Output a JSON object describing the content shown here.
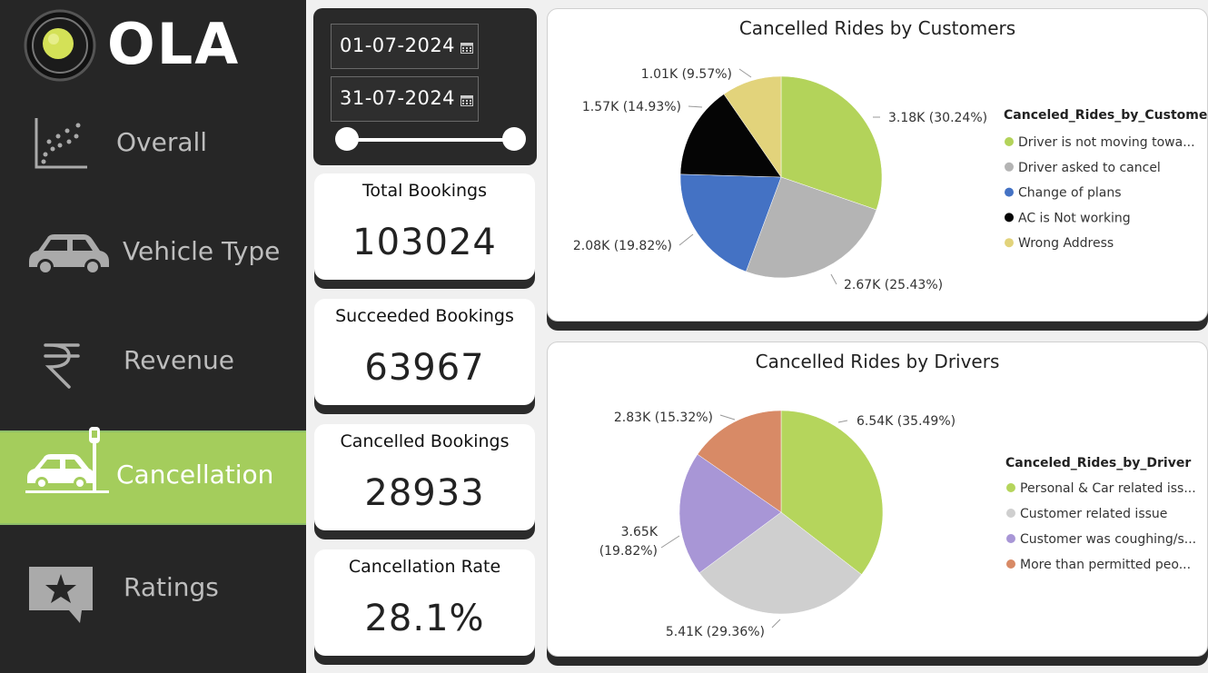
{
  "brand": {
    "name": "OLA"
  },
  "nav": {
    "items": [
      {
        "label": "Overall",
        "icon": "scatter-plot-icon",
        "active": false
      },
      {
        "label": "Vehicle Type",
        "icon": "car-icon",
        "active": false
      },
      {
        "label": "Revenue",
        "icon": "rupee-icon",
        "active": false
      },
      {
        "label": "Cancellation",
        "icon": "car-crash-icon",
        "active": true
      },
      {
        "label": "Ratings",
        "icon": "star-message-icon",
        "active": false
      }
    ]
  },
  "filters": {
    "start_date": "01-07-2024",
    "end_date": "31-07-2024",
    "range": [
      0,
      1
    ]
  },
  "kpis": [
    {
      "title": "Total Bookings",
      "value": "103024"
    },
    {
      "title": "Succeeded Bookings",
      "value": "63967"
    },
    {
      "title": "Cancelled Bookings",
      "value": "28933"
    },
    {
      "title": "Cancellation Rate",
      "value": "28.1%"
    }
  ],
  "chart_data": [
    {
      "type": "pie",
      "title": "Cancelled Rides by Customers",
      "legend_title": "Canceled_Rides_by_Customer",
      "legend_position": "right",
      "slices": [
        {
          "label": "Driver is not moving towa...",
          "value": 3.18,
          "data_label": "3.18K (30.24%)",
          "percent": 30.24,
          "color": "#b3d35a"
        },
        {
          "label": "Driver asked to cancel",
          "value": 2.67,
          "data_label": "2.67K (25.43%)",
          "percent": 25.43,
          "color": "#b4b4b4"
        },
        {
          "label": "Change of plans",
          "value": 2.08,
          "data_label": "2.08K (19.82%)",
          "percent": 19.82,
          "color": "#4472c4"
        },
        {
          "label": "AC is Not working",
          "value": 1.57,
          "data_label": "1.57K (14.93%)",
          "percent": 14.93,
          "color": "#050505"
        },
        {
          "label": "Wrong Address",
          "value": 1.01,
          "data_label": "1.01K (9.57%)",
          "percent": 9.57,
          "color": "#e2d37b"
        }
      ]
    },
    {
      "type": "pie",
      "title": "Cancelled Rides by Drivers",
      "legend_title": "Canceled_Rides_by_Driver",
      "legend_position": "right",
      "slices": [
        {
          "label": "Personal & Car related iss...",
          "value": 6.54,
          "data_label": "6.54K (35.49%)",
          "percent": 35.49,
          "color": "#b5d55c"
        },
        {
          "label": "Customer related issue",
          "value": 5.41,
          "data_label": "5.41K (29.36%)",
          "percent": 29.36,
          "color": "#cfcfcf"
        },
        {
          "label": "Customer was coughing/s...",
          "value": 3.65,
          "data_label": "3.65K (19.82%)",
          "percent": 19.82,
          "color": "#a896d6"
        },
        {
          "label": "More than permitted peo...",
          "value": 2.83,
          "data_label": "2.83K (15.32%)",
          "percent": 15.32,
          "color": "#d88a66"
        }
      ]
    }
  ]
}
